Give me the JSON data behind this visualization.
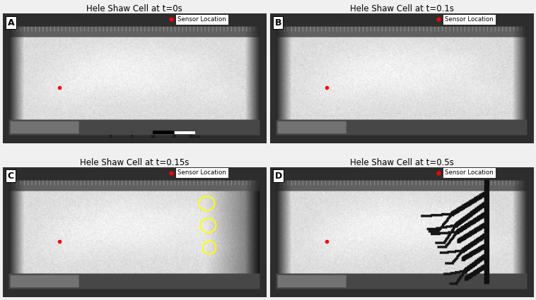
{
  "titles": [
    "Hele Shaw Cell at t=0s",
    "Hele Shaw Cell at t=0.1s",
    "Hele Shaw Cell at t=0.15s",
    "Hele Shaw Cell at t=0.5s"
  ],
  "panel_labels": [
    "A",
    "B",
    "C",
    "D"
  ],
  "legend_label": "Sensor Location",
  "sensor_dot_color": "#ff0000",
  "background_color": "#f0f0f0",
  "title_fontsize": 8.5,
  "label_fontsize": 9
}
